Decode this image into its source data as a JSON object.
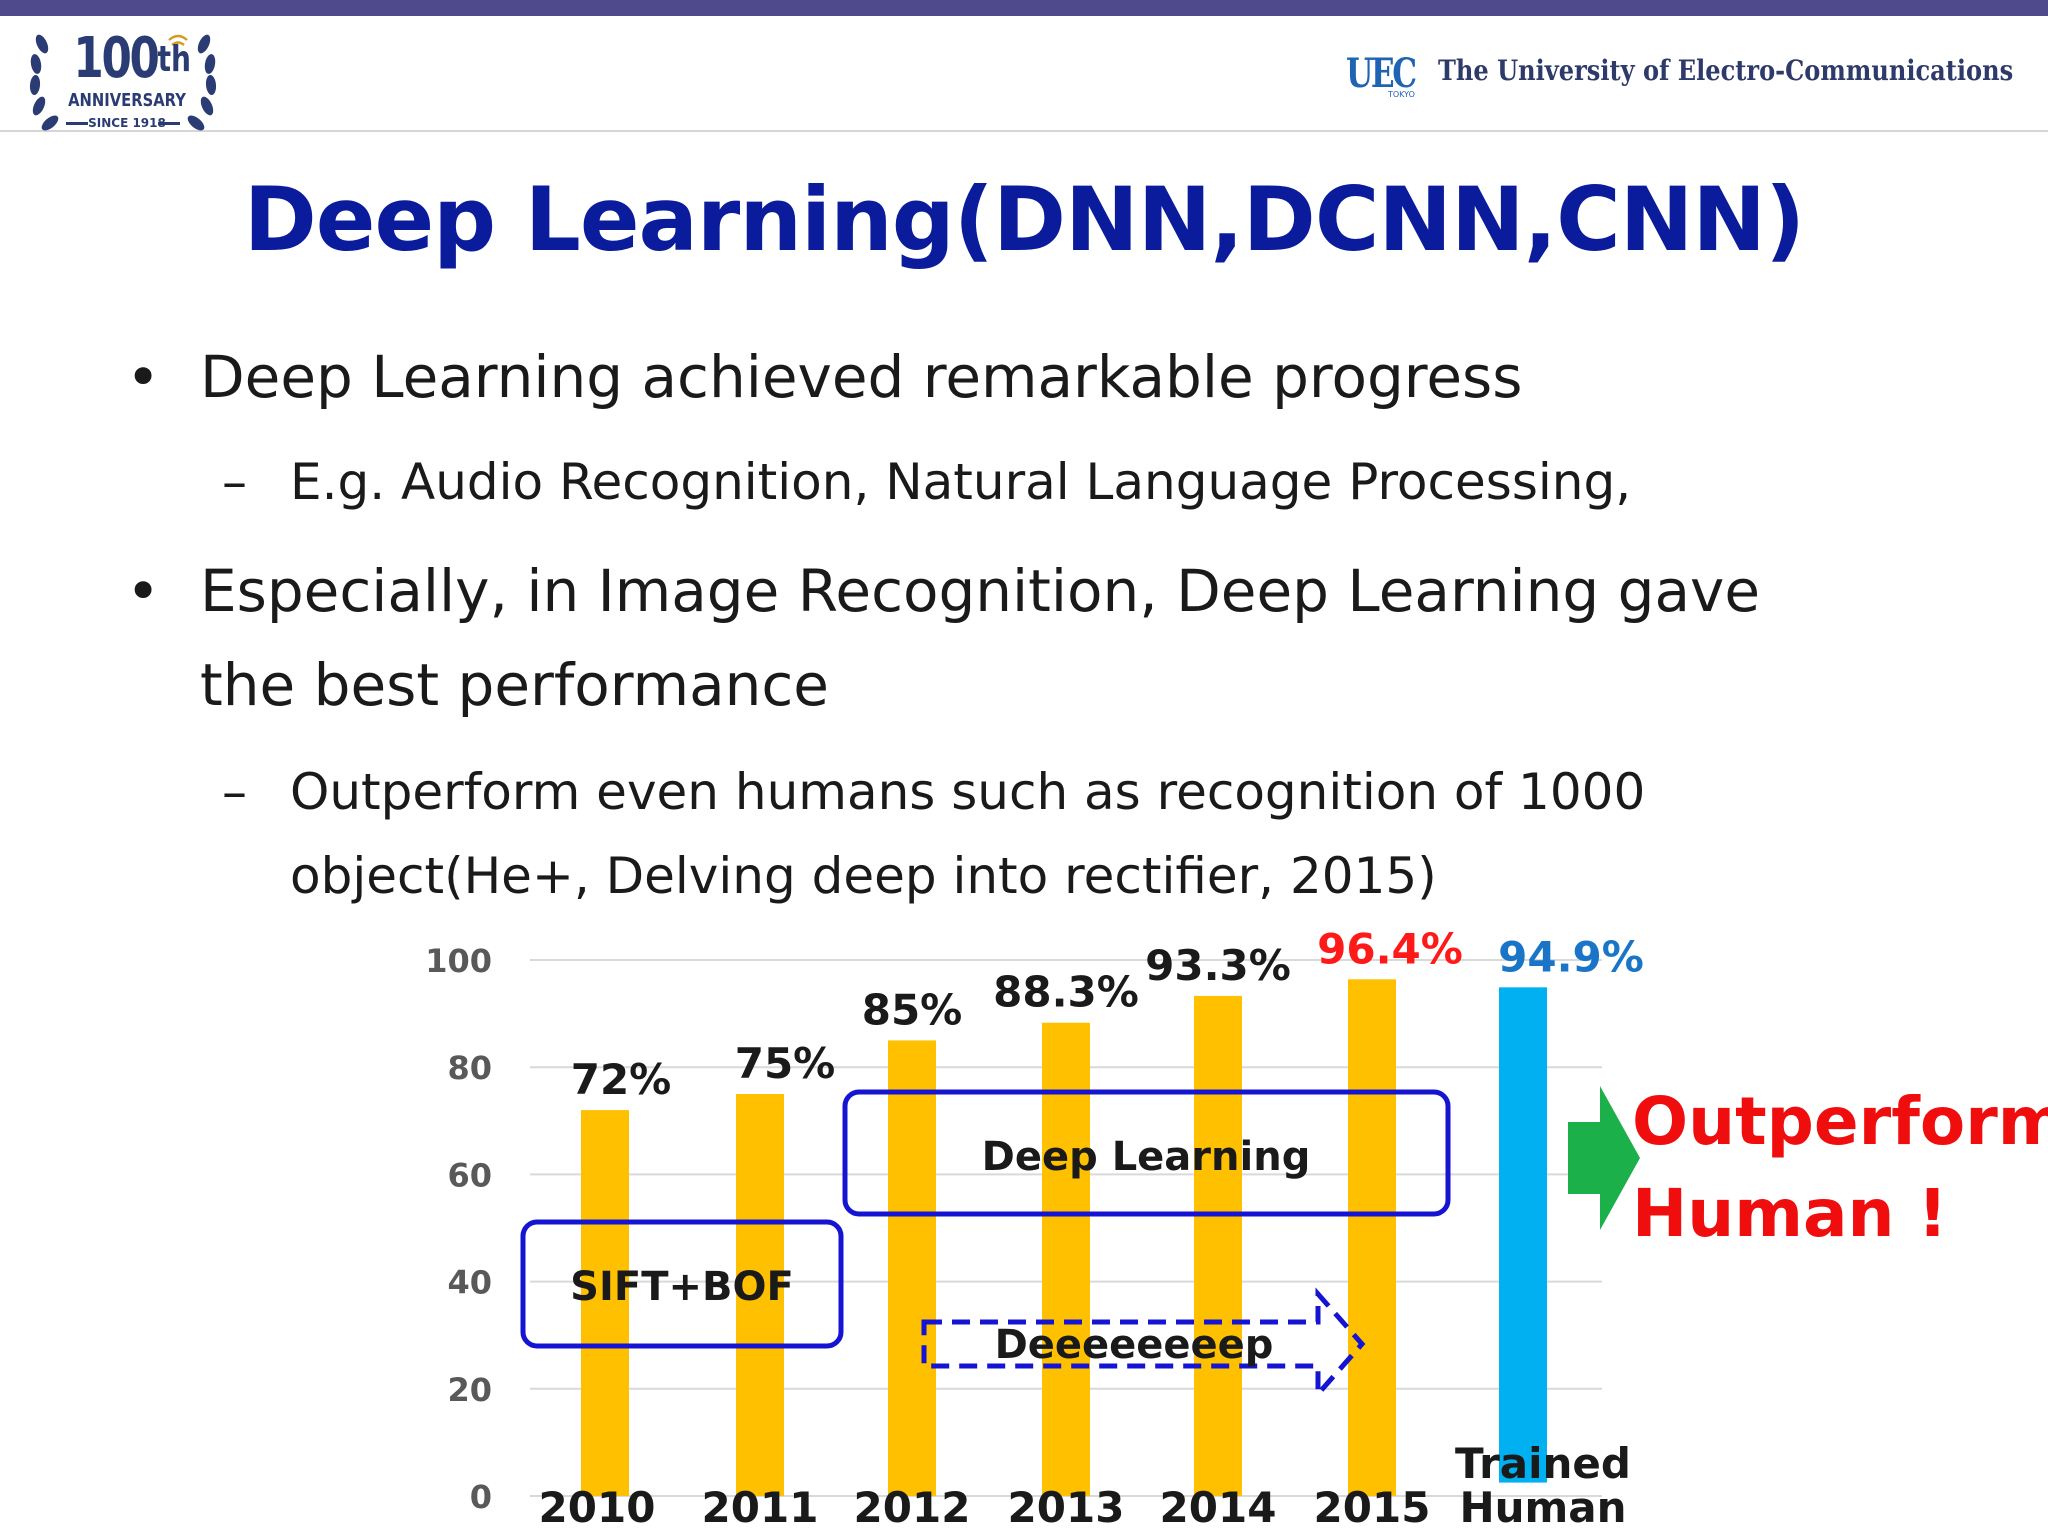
{
  "header": {
    "anniversary": {
      "number": "100",
      "suffix": "th",
      "word": "ANNIVERSARY",
      "since": "SINCE 1918"
    },
    "university": {
      "mark": "UEC",
      "mark_sub": "TOKYO",
      "name": "The University of Electro-Communications"
    }
  },
  "title": "Deep Learning(DNN,DCNN,CNN)",
  "bullets": {
    "b1": "Deep Learning achieved remarkable progress",
    "b1_sub": "E.g. Audio Recognition, Natural Language Processing,",
    "b2_line1": "Especially, in Image Recognition, Deep Learning gave",
    "b2_line2": "the best performance",
    "b2_sub_line1": "Outperform even humans such as recognition of 1000",
    "b2_sub_line2": "object(He+, Delving deep into rectifier, 2015)"
  },
  "chart_data": {
    "type": "bar",
    "categories": [
      "2010",
      "2011",
      "2012",
      "2013",
      "2014",
      "2015",
      "Trained Human"
    ],
    "values": [
      72,
      75,
      85,
      88.3,
      93.3,
      96.4,
      94.9
    ],
    "data_labels": [
      "72%",
      "75%",
      "85%",
      "88.3%",
      "93.3%",
      "96.4%",
      "94.9%"
    ],
    "ylim": [
      0,
      100
    ],
    "yticks": [
      "0",
      "20",
      "40",
      "60",
      "80",
      "100"
    ],
    "grid": true,
    "bar_colors": [
      "#ffc000",
      "#ffc000",
      "#ffc000",
      "#ffc000",
      "#ffc000",
      "#ffc000",
      "#00b0f0"
    ],
    "label_colors": [
      "#1a1a1a",
      "#1a1a1a",
      "#1a1a1a",
      "#1a1a1a",
      "#1a1a1a",
      "#ff1a1a",
      "#1a75c6"
    ],
    "annotations": {
      "sift": "SIFT+BOF",
      "deep": "Deep Learning",
      "deeep": "Deeeeeeeep",
      "outperform_line1": "Outperform",
      "outperform_line2": "Human !"
    }
  }
}
